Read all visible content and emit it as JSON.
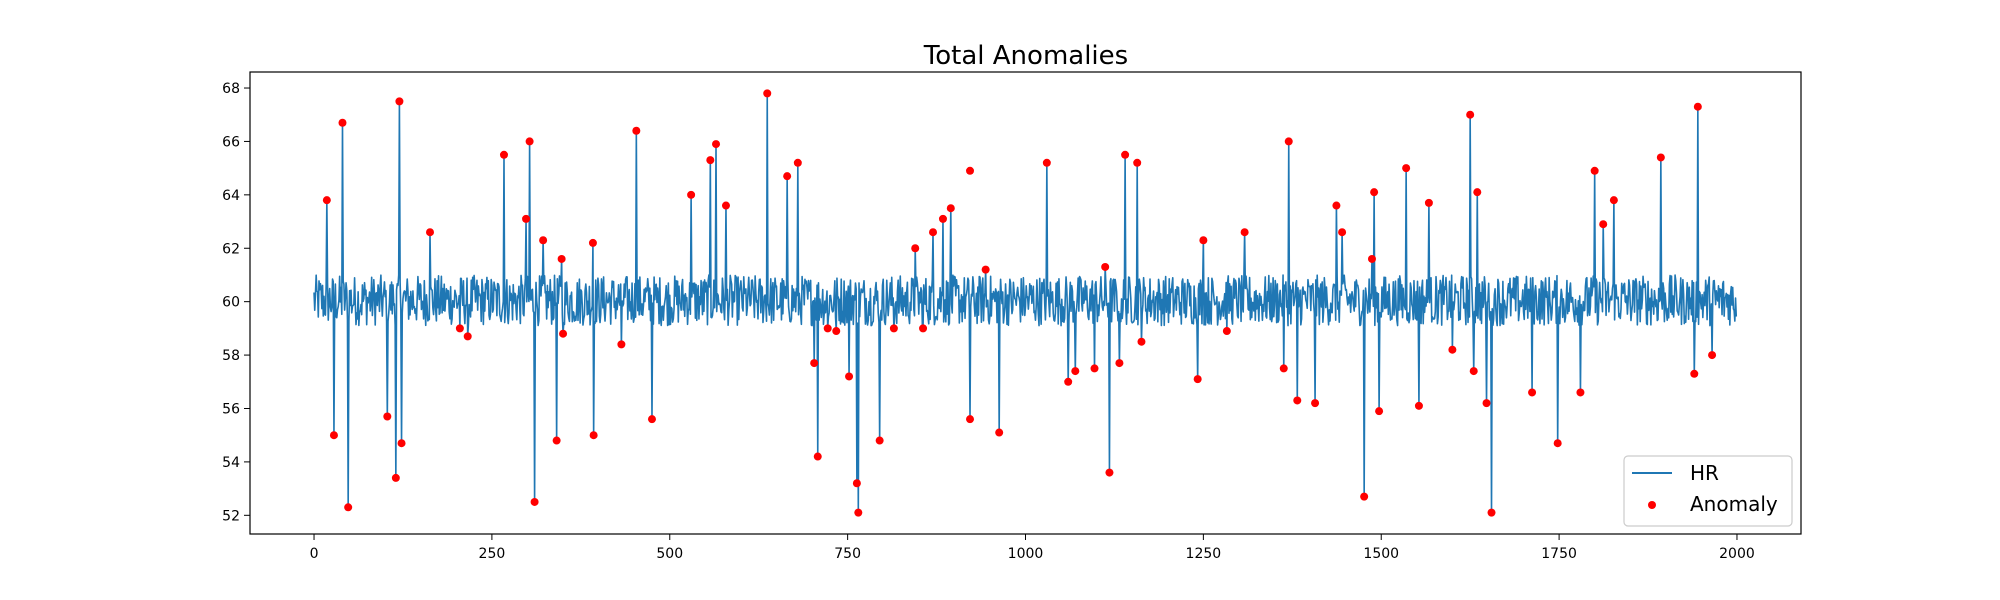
{
  "chart_data": {
    "type": "line",
    "title": "Total Anomalies",
    "xlabel": "",
    "ylabel": "",
    "xlim": [
      -90,
      2090
    ],
    "ylim": [
      51.3,
      68.6
    ],
    "x_ticks": [
      0,
      250,
      500,
      750,
      1000,
      1250,
      1500,
      1750,
      2000
    ],
    "x_tick_labels": [
      "0",
      "250",
      "500",
      "750",
      "1000",
      "1250",
      "1500",
      "1750",
      "2000"
    ],
    "y_ticks": [
      52,
      54,
      56,
      58,
      60,
      62,
      64,
      66,
      68
    ],
    "y_tick_labels": [
      "52",
      "54",
      "56",
      "58",
      "60",
      "62",
      "64",
      "66",
      "68"
    ],
    "grid": false,
    "legend_position": "lower right",
    "baseline": {
      "n_points": 2000,
      "center": 60.0,
      "low": 59.1,
      "high": 61.0
    },
    "series": [
      {
        "name": "HR",
        "kind": "line",
        "color": "#1f77b4"
      },
      {
        "name": "Anomaly",
        "kind": "scatter",
        "color": "#ff0000",
        "points": [
          {
            "x": 18,
            "y": 63.8
          },
          {
            "x": 28,
            "y": 55.0
          },
          {
            "x": 40,
            "y": 66.7
          },
          {
            "x": 48,
            "y": 52.3
          },
          {
            "x": 103,
            "y": 55.7
          },
          {
            "x": 115,
            "y": 53.4
          },
          {
            "x": 120,
            "y": 67.5
          },
          {
            "x": 123,
            "y": 54.7
          },
          {
            "x": 163,
            "y": 62.6
          },
          {
            "x": 205,
            "y": 59.0
          },
          {
            "x": 216,
            "y": 58.7
          },
          {
            "x": 267,
            "y": 65.5
          },
          {
            "x": 298,
            "y": 63.1
          },
          {
            "x": 303,
            "y": 66.0
          },
          {
            "x": 310,
            "y": 52.5
          },
          {
            "x": 322,
            "y": 62.3
          },
          {
            "x": 341,
            "y": 54.8
          },
          {
            "x": 348,
            "y": 61.6
          },
          {
            "x": 350,
            "y": 58.8
          },
          {
            "x": 392,
            "y": 62.2
          },
          {
            "x": 393,
            "y": 55.0
          },
          {
            "x": 432,
            "y": 58.4
          },
          {
            "x": 453,
            "y": 66.4
          },
          {
            "x": 475,
            "y": 55.6
          },
          {
            "x": 530,
            "y": 64.0
          },
          {
            "x": 557,
            "y": 65.3
          },
          {
            "x": 565,
            "y": 65.9
          },
          {
            "x": 579,
            "y": 63.6
          },
          {
            "x": 637,
            "y": 67.8
          },
          {
            "x": 665,
            "y": 64.7
          },
          {
            "x": 680,
            "y": 65.2
          },
          {
            "x": 703,
            "y": 57.7
          },
          {
            "x": 708,
            "y": 54.2
          },
          {
            "x": 722,
            "y": 59.0
          },
          {
            "x": 734,
            "y": 58.9
          },
          {
            "x": 752,
            "y": 57.2
          },
          {
            "x": 763,
            "y": 53.2
          },
          {
            "x": 765,
            "y": 52.1
          },
          {
            "x": 795,
            "y": 54.8
          },
          {
            "x": 815,
            "y": 59.0
          },
          {
            "x": 845,
            "y": 62.0
          },
          {
            "x": 856,
            "y": 59.0
          },
          {
            "x": 870,
            "y": 62.6
          },
          {
            "x": 884,
            "y": 63.1
          },
          {
            "x": 895,
            "y": 63.5
          },
          {
            "x": 922,
            "y": 64.9
          },
          {
            "x": 922,
            "y": 55.6
          },
          {
            "x": 944,
            "y": 61.2
          },
          {
            "x": 963,
            "y": 55.1
          },
          {
            "x": 1030,
            "y": 65.2
          },
          {
            "x": 1060,
            "y": 57.0
          },
          {
            "x": 1070,
            "y": 57.4
          },
          {
            "x": 1097,
            "y": 57.5
          },
          {
            "x": 1112,
            "y": 61.3
          },
          {
            "x": 1118,
            "y": 53.6
          },
          {
            "x": 1132,
            "y": 57.7
          },
          {
            "x": 1140,
            "y": 65.5
          },
          {
            "x": 1157,
            "y": 65.2
          },
          {
            "x": 1163,
            "y": 58.5
          },
          {
            "x": 1242,
            "y": 57.1
          },
          {
            "x": 1250,
            "y": 62.3
          },
          {
            "x": 1283,
            "y": 58.9
          },
          {
            "x": 1308,
            "y": 62.6
          },
          {
            "x": 1363,
            "y": 57.5
          },
          {
            "x": 1370,
            "y": 66.0
          },
          {
            "x": 1382,
            "y": 56.3
          },
          {
            "x": 1407,
            "y": 56.2
          },
          {
            "x": 1437,
            "y": 63.6
          },
          {
            "x": 1445,
            "y": 62.6
          },
          {
            "x": 1476,
            "y": 52.7
          },
          {
            "x": 1487,
            "y": 61.6
          },
          {
            "x": 1490,
            "y": 64.1
          },
          {
            "x": 1497,
            "y": 55.9
          },
          {
            "x": 1535,
            "y": 65.0
          },
          {
            "x": 1553,
            "y": 56.1
          },
          {
            "x": 1567,
            "y": 63.7
          },
          {
            "x": 1600,
            "y": 58.2
          },
          {
            "x": 1625,
            "y": 67.0
          },
          {
            "x": 1630,
            "y": 57.4
          },
          {
            "x": 1635,
            "y": 64.1
          },
          {
            "x": 1648,
            "y": 56.2
          },
          {
            "x": 1655,
            "y": 52.1
          },
          {
            "x": 1712,
            "y": 56.6
          },
          {
            "x": 1748,
            "y": 54.7
          },
          {
            "x": 1780,
            "y": 56.6
          },
          {
            "x": 1800,
            "y": 64.9
          },
          {
            "x": 1812,
            "y": 62.9
          },
          {
            "x": 1827,
            "y": 63.8
          },
          {
            "x": 1893,
            "y": 65.4
          },
          {
            "x": 1940,
            "y": 57.3
          },
          {
            "x": 1945,
            "y": 67.3
          },
          {
            "x": 1965,
            "y": 58.0
          }
        ]
      }
    ]
  }
}
